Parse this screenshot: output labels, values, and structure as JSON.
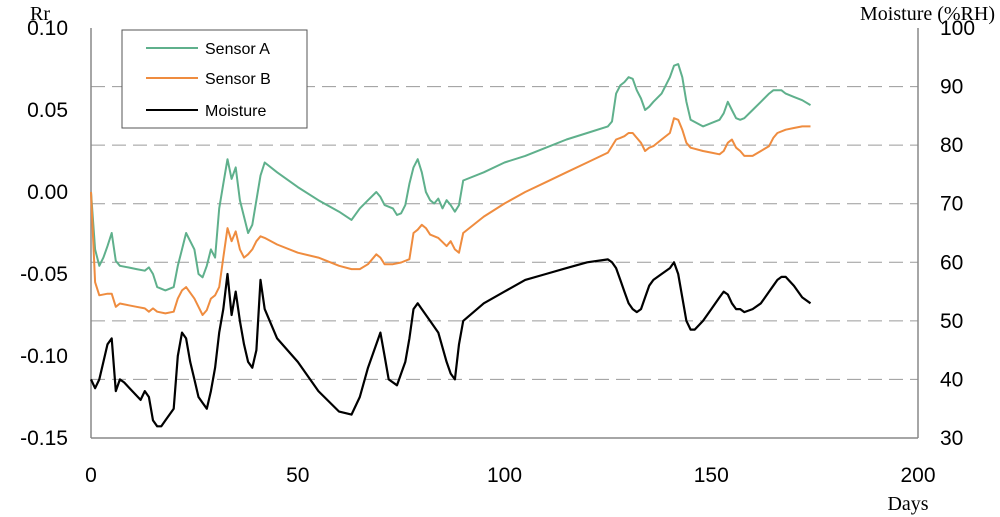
{
  "chart_data": {
    "type": "line",
    "x_label": "Days",
    "y_left_label": "Rr",
    "y_right_label": "Moisture (%RH)",
    "xlim": [
      0,
      200
    ],
    "ylim_left": [
      -0.15,
      0.1
    ],
    "ylim_right": [
      30,
      100
    ],
    "x_ticks": [
      "0",
      "50",
      "100",
      "150",
      "200"
    ],
    "y_left_ticks": [
      "0.10",
      "0.05",
      "0.00",
      "-0.05",
      "-0.10",
      "-0.15"
    ],
    "y_right_ticks": [
      "100",
      "90",
      "80",
      "70",
      "60",
      "50",
      "40",
      "30"
    ],
    "grid": "dashed horizontal at right-axis ticks",
    "legend_position": "top-left",
    "series": [
      {
        "name": "Sensor A",
        "axis": "left",
        "color": "#5fb08c",
        "x": [
          0,
          1,
          2,
          3,
          4,
          5,
          6,
          7,
          9,
          11,
          13,
          14,
          15,
          16,
          18,
          20,
          21,
          22,
          23,
          25,
          26,
          27,
          28,
          29,
          30,
          31,
          32,
          33,
          34,
          35,
          36,
          37,
          38,
          39,
          40,
          41,
          42,
          45,
          50,
          55,
          60,
          63,
          65,
          67,
          69,
          70,
          71,
          73,
          74,
          75,
          76,
          77,
          78,
          79,
          80,
          81,
          82,
          83,
          84,
          85,
          86,
          87,
          88,
          89,
          90,
          95,
          100,
          105,
          110,
          115,
          120,
          125,
          126,
          127,
          128,
          129,
          130,
          131,
          132,
          133,
          134,
          135,
          136,
          138,
          140,
          141,
          142,
          143,
          144,
          145,
          148,
          150,
          152,
          153,
          154,
          155,
          156,
          157,
          158,
          160,
          162,
          164,
          165,
          166,
          167,
          168,
          170,
          172,
          174
        ],
        "y": [
          0.0,
          -0.035,
          -0.045,
          -0.04,
          -0.033,
          -0.025,
          -0.042,
          -0.045,
          -0.046,
          -0.047,
          -0.048,
          -0.046,
          -0.05,
          -0.058,
          -0.06,
          -0.058,
          -0.045,
          -0.035,
          -0.025,
          -0.035,
          -0.05,
          -0.052,
          -0.045,
          -0.035,
          -0.04,
          -0.01,
          0.005,
          0.02,
          0.008,
          0.015,
          -0.005,
          -0.015,
          -0.025,
          -0.02,
          -0.005,
          0.01,
          0.018,
          0.012,
          0.003,
          -0.005,
          -0.012,
          -0.017,
          -0.01,
          -0.005,
          0.0,
          -0.003,
          -0.008,
          -0.01,
          -0.014,
          -0.013,
          -0.008,
          0.005,
          0.015,
          0.02,
          0.012,
          0.0,
          -0.005,
          -0.007,
          -0.004,
          -0.01,
          -0.005,
          -0.008,
          -0.012,
          -0.008,
          0.007,
          0.012,
          0.018,
          0.022,
          0.027,
          0.032,
          0.036,
          0.04,
          0.043,
          0.06,
          0.065,
          0.067,
          0.07,
          0.069,
          0.062,
          0.057,
          0.05,
          0.052,
          0.055,
          0.06,
          0.07,
          0.077,
          0.078,
          0.07,
          0.055,
          0.044,
          0.04,
          0.042,
          0.044,
          0.048,
          0.055,
          0.05,
          0.045,
          0.044,
          0.045,
          0.05,
          0.055,
          0.06,
          0.062,
          0.062,
          0.062,
          0.06,
          0.058,
          0.056,
          0.053
        ]
      },
      {
        "name": "Sensor B",
        "axis": "left",
        "color": "#ef8c3f",
        "x": [
          0,
          1,
          2,
          4,
          5,
          6,
          7,
          9,
          11,
          13,
          14,
          15,
          16,
          18,
          20,
          21,
          22,
          23,
          25,
          26,
          27,
          28,
          29,
          30,
          31,
          32,
          33,
          34,
          35,
          36,
          37,
          38,
          39,
          40,
          41,
          42,
          45,
          50,
          55,
          60,
          63,
          65,
          67,
          69,
          70,
          71,
          73,
          75,
          77,
          78,
          79,
          80,
          81,
          82,
          84,
          86,
          87,
          88,
          89,
          90,
          95,
          100,
          105,
          110,
          115,
          120,
          125,
          126,
          127,
          128,
          129,
          130,
          131,
          132,
          133,
          134,
          135,
          136,
          138,
          140,
          141,
          142,
          143,
          144,
          145,
          148,
          150,
          152,
          153,
          154,
          155,
          156,
          157,
          158,
          160,
          162,
          164,
          165,
          166,
          168,
          170,
          172,
          174
        ],
        "y": [
          0.0,
          -0.055,
          -0.063,
          -0.062,
          -0.062,
          -0.07,
          -0.068,
          -0.069,
          -0.07,
          -0.071,
          -0.073,
          -0.071,
          -0.073,
          -0.074,
          -0.073,
          -0.065,
          -0.06,
          -0.058,
          -0.065,
          -0.07,
          -0.075,
          -0.072,
          -0.065,
          -0.063,
          -0.058,
          -0.04,
          -0.022,
          -0.03,
          -0.024,
          -0.035,
          -0.04,
          -0.038,
          -0.035,
          -0.03,
          -0.027,
          -0.028,
          -0.032,
          -0.037,
          -0.04,
          -0.045,
          -0.047,
          -0.047,
          -0.044,
          -0.038,
          -0.04,
          -0.044,
          -0.044,
          -0.043,
          -0.041,
          -0.025,
          -0.023,
          -0.02,
          -0.022,
          -0.026,
          -0.028,
          -0.033,
          -0.03,
          -0.035,
          -0.037,
          -0.025,
          -0.015,
          -0.007,
          0.0,
          0.006,
          0.012,
          0.018,
          0.024,
          0.028,
          0.032,
          0.033,
          0.034,
          0.036,
          0.036,
          0.033,
          0.03,
          0.025,
          0.027,
          0.028,
          0.032,
          0.036,
          0.045,
          0.044,
          0.038,
          0.03,
          0.027,
          0.025,
          0.024,
          0.023,
          0.025,
          0.03,
          0.032,
          0.027,
          0.025,
          0.022,
          0.022,
          0.025,
          0.028,
          0.033,
          0.036,
          0.038,
          0.039,
          0.04,
          0.04
        ]
      },
      {
        "name": "Moisture",
        "axis": "right",
        "color": "#000000",
        "x": [
          0,
          1,
          2,
          3,
          4,
          5,
          6,
          7,
          8,
          10,
          12,
          13,
          14,
          15,
          16,
          17,
          18,
          20,
          21,
          22,
          23,
          24,
          25,
          26,
          27,
          28,
          29,
          30,
          31,
          32,
          33,
          34,
          35,
          36,
          37,
          38,
          39,
          40,
          41,
          42,
          45,
          50,
          55,
          60,
          63,
          65,
          67,
          69,
          70,
          71,
          72,
          74,
          75,
          76,
          77,
          78,
          79,
          80,
          82,
          84,
          86,
          87,
          88,
          89,
          90,
          95,
          100,
          105,
          110,
          115,
          120,
          125,
          126,
          127,
          128,
          129,
          130,
          131,
          132,
          133,
          134,
          135,
          136,
          138,
          140,
          141,
          142,
          143,
          144,
          145,
          146,
          148,
          150,
          152,
          153,
          154,
          155,
          156,
          157,
          158,
          160,
          162,
          164,
          165,
          166,
          167,
          168,
          170,
          172,
          174
        ],
        "y": [
          40,
          38.5,
          40,
          43,
          46,
          47,
          38,
          40,
          39.5,
          38,
          36.5,
          38,
          37,
          33,
          32,
          32,
          33,
          35,
          44,
          48,
          47,
          43,
          40,
          37,
          36,
          35,
          38,
          42,
          48,
          52,
          58,
          51,
          55,
          50,
          46,
          43,
          42,
          45,
          57,
          52,
          47,
          43,
          38,
          34.5,
          34,
          37,
          42,
          46,
          48,
          44,
          40,
          39,
          41,
          43,
          47,
          52,
          53,
          52,
          50,
          48,
          43,
          41,
          40,
          46,
          50,
          53,
          55,
          57,
          58,
          59,
          60,
          60.5,
          60,
          59,
          57,
          55,
          53,
          52,
          51.5,
          52,
          54,
          56,
          57,
          58,
          59,
          60,
          58,
          54,
          50,
          48.5,
          48.5,
          50,
          52,
          54,
          55,
          54.5,
          53,
          52,
          52,
          51.5,
          52,
          53,
          55,
          56,
          57,
          57.5,
          57.5,
          56,
          54,
          53
        ]
      }
    ]
  }
}
